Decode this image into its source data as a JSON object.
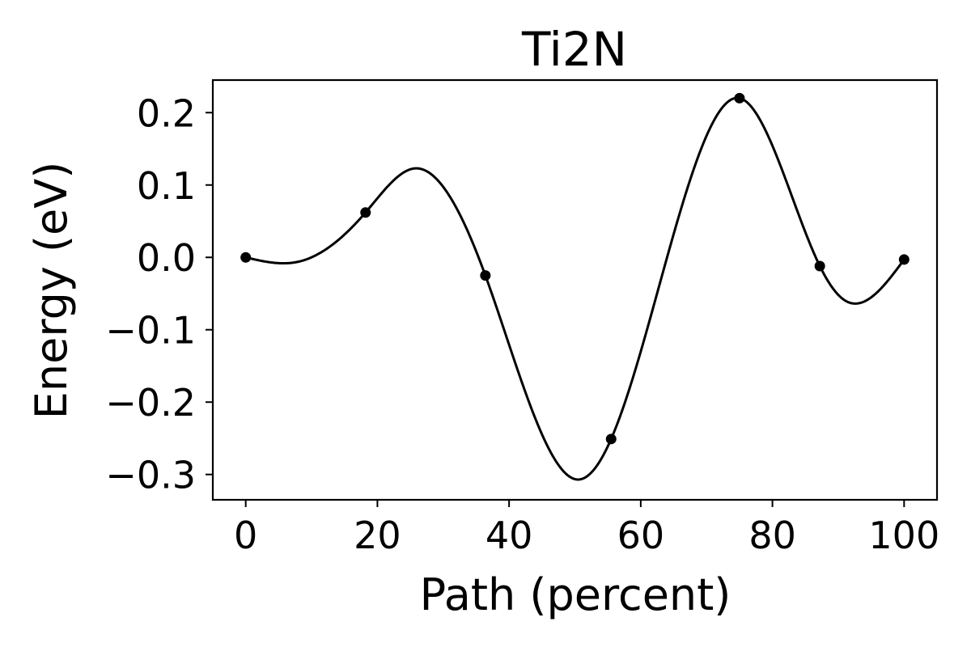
{
  "chart_data": {
    "type": "line",
    "title": "Ti2N",
    "xlabel": "Path (percent)",
    "ylabel": "Energy (eV)",
    "xlim": [
      -5,
      105
    ],
    "ylim": [
      -0.335,
      0.245
    ],
    "x_ticks": [
      0,
      20,
      40,
      60,
      80,
      100
    ],
    "x_tick_labels": [
      "0",
      "20",
      "40",
      "60",
      "80",
      "100"
    ],
    "y_ticks": [
      0.2,
      0.1,
      0.0,
      -0.1,
      -0.2,
      -0.3
    ],
    "y_tick_labels": [
      "0.2",
      "0.1",
      "0.0",
      "−0.1",
      "−0.2",
      "−0.3"
    ],
    "grid": false,
    "color": "#000000",
    "series": [
      {
        "style": "markers",
        "x": [
          0,
          18.2,
          36.4,
          55.5,
          75.0,
          87.2,
          100
        ],
        "y": [
          0.0,
          0.062,
          -0.025,
          -0.251,
          0.22,
          -0.012,
          -0.003
        ]
      },
      {
        "style": "smooth-line",
        "x": [
          0,
          8,
          18.2,
          25.8,
          36.4,
          50.5,
          55.5,
          75.0,
          87.2,
          91.3,
          100
        ],
        "y": [
          0.0,
          -0.006,
          0.062,
          0.123,
          -0.025,
          -0.307,
          -0.251,
          0.22,
          -0.012,
          -0.061,
          -0.003
        ]
      }
    ]
  }
}
